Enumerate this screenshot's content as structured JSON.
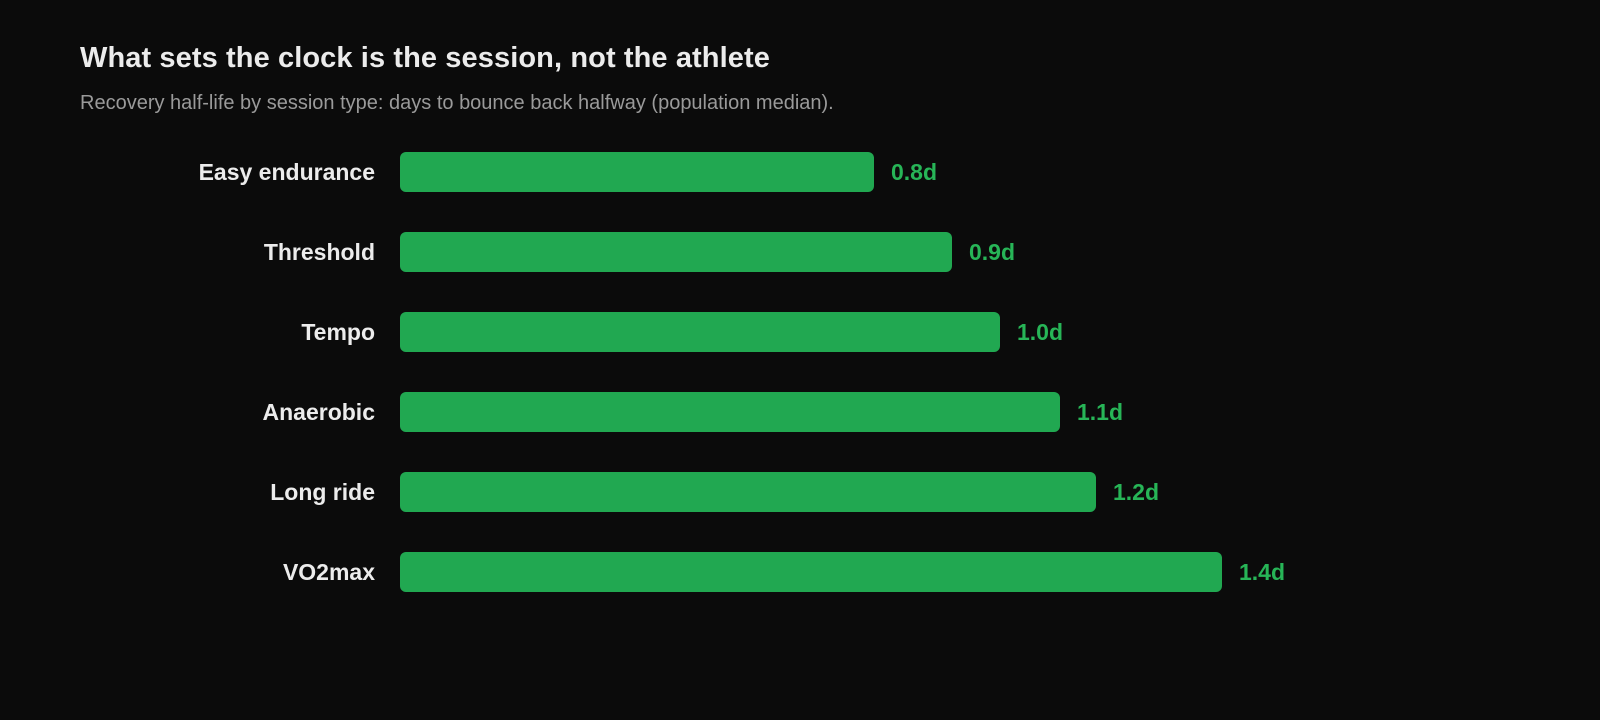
{
  "header": {
    "title": "What sets the clock is the session, not the athlete",
    "subtitle": "Recovery half-life by session type: days to bounce back halfway (population median)."
  },
  "colors": {
    "background": "#0b0b0b",
    "bar": "#21a851",
    "value_label": "#27b557",
    "category_label": "#ececec",
    "subtitle": "#9a9a9a"
  },
  "chart_data": {
    "type": "bar",
    "orientation": "horizontal",
    "title": "What sets the clock is the session, not the athlete",
    "subtitle": "Recovery half-life by session type: days to bounce back halfway (population median).",
    "categories": [
      "Easy endurance",
      "Threshold",
      "Tempo",
      "Anaerobic",
      "Long ride",
      "VO2max"
    ],
    "values": [
      0.79,
      0.92,
      1.0,
      1.1,
      1.16,
      1.37
    ],
    "value_labels": [
      "0.8d",
      "0.9d",
      "1.0d",
      "1.1d",
      "1.2d",
      "1.4d"
    ],
    "unit_suffix": "d",
    "xlim": [
      0,
      1.6
    ],
    "grid": false,
    "legend": "none"
  }
}
